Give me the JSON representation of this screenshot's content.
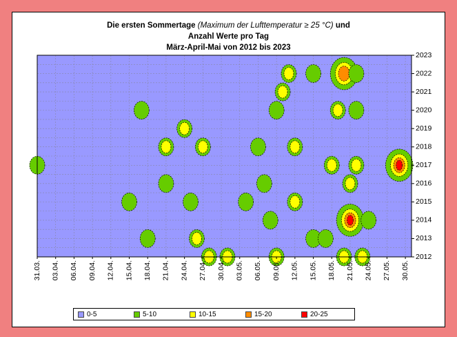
{
  "title": {
    "line1_bold": "Die ersten Sommertage",
    "line1_italic": "(Maximum der Lufttemperatur ≥ 25 °C)",
    "line1_end": "und",
    "line2": "Anzahl Werte pro Tag",
    "line3": "März-April-Mai von 2012 bis 2023"
  },
  "chart_data": {
    "type": "heatmap",
    "x_ticks": [
      "31.03.",
      "03.04.",
      "06.04.",
      "09.04.",
      "12.04.",
      "15.04.",
      "18.04.",
      "21.04.",
      "24.04.",
      "27.04.",
      "30.04.",
      "03.05.",
      "06.05.",
      "09.05.",
      "12.05.",
      "15.05.",
      "18.05.",
      "21.05.",
      "24.05.",
      "27.05.",
      "30.05."
    ],
    "y_ticks": [
      "2012",
      "2013",
      "2014",
      "2015",
      "2016",
      "2017",
      "2018",
      "2019",
      "2020",
      "2021",
      "2022",
      "2023"
    ],
    "ylim": [
      2012,
      2023
    ],
    "grid": true,
    "legend": [
      {
        "label": "0-5",
        "color": "#9999ff"
      },
      {
        "label": "5-10",
        "color": "#66cc00"
      },
      {
        "label": "10-15",
        "color": "#ffff00"
      },
      {
        "label": "15-20",
        "color": "#ff8c00"
      },
      {
        "label": "20-25",
        "color": "#ff0000"
      }
    ],
    "blobs": [
      {
        "x": "31.03.",
        "year": 2017,
        "peak": "5-10"
      },
      {
        "x": "15.04.",
        "year": 2015,
        "peak": "5-10"
      },
      {
        "x": "17.04.",
        "year": 2020,
        "peak": "5-10"
      },
      {
        "x": "18.04.",
        "year": 2013,
        "peak": "5-10"
      },
      {
        "x": "21.04.",
        "year": 2018,
        "peak": "10-15"
      },
      {
        "x": "21.04.",
        "year": 2016,
        "peak": "5-10"
      },
      {
        "x": "24.04.",
        "year": 2019,
        "peak": "10-15"
      },
      {
        "x": "25.04.",
        "year": 2015,
        "peak": "5-10"
      },
      {
        "x": "26.04.",
        "year": 2013,
        "peak": "10-15"
      },
      {
        "x": "27.04.",
        "year": 2018,
        "peak": "10-15"
      },
      {
        "x": "28.04.",
        "year": 2012,
        "peak": "10-15"
      },
      {
        "x": "01.05.",
        "year": 2012,
        "peak": "10-15"
      },
      {
        "x": "04.05.",
        "year": 2015,
        "peak": "5-10"
      },
      {
        "x": "06.05.",
        "year": 2018,
        "peak": "5-10"
      },
      {
        "x": "07.05.",
        "year": 2016,
        "peak": "5-10"
      },
      {
        "x": "08.05.",
        "year": 2014,
        "peak": "5-10"
      },
      {
        "x": "09.05.",
        "year": 2020,
        "peak": "5-10"
      },
      {
        "x": "09.05.",
        "year": 2012,
        "peak": "10-15"
      },
      {
        "x": "10.05.",
        "year": 2021,
        "peak": "10-15"
      },
      {
        "x": "11.05.",
        "year": 2022,
        "peak": "10-15"
      },
      {
        "x": "12.05.",
        "year": 2018,
        "peak": "10-15"
      },
      {
        "x": "12.05.",
        "year": 2015,
        "peak": "10-15"
      },
      {
        "x": "15.05.",
        "year": 2022,
        "peak": "5-10"
      },
      {
        "x": "15.05.",
        "year": 2013,
        "peak": "5-10"
      },
      {
        "x": "17.05.",
        "year": 2013,
        "peak": "5-10"
      },
      {
        "x": "18.05.",
        "year": 2017,
        "peak": "10-15"
      },
      {
        "x": "19.05.",
        "year": 2020,
        "peak": "10-15"
      },
      {
        "x": "20.05.",
        "year": 2022,
        "peak": "15-20"
      },
      {
        "x": "20.05.",
        "year": 2012,
        "peak": "10-15"
      },
      {
        "x": "21.05.",
        "year": 2014,
        "peak": "20-25"
      },
      {
        "x": "21.05.",
        "year": 2016,
        "peak": "10-15"
      },
      {
        "x": "22.05.",
        "year": 2017,
        "peak": "10-15"
      },
      {
        "x": "22.05.",
        "year": 2020,
        "peak": "5-10"
      },
      {
        "x": "22.05.",
        "year": 2022,
        "peak": "5-10"
      },
      {
        "x": "23.05.",
        "year": 2012,
        "peak": "10-15"
      },
      {
        "x": "24.05.",
        "year": 2014,
        "peak": "5-10"
      },
      {
        "x": "29.05.",
        "year": 2017,
        "peak": "20-25"
      }
    ]
  }
}
